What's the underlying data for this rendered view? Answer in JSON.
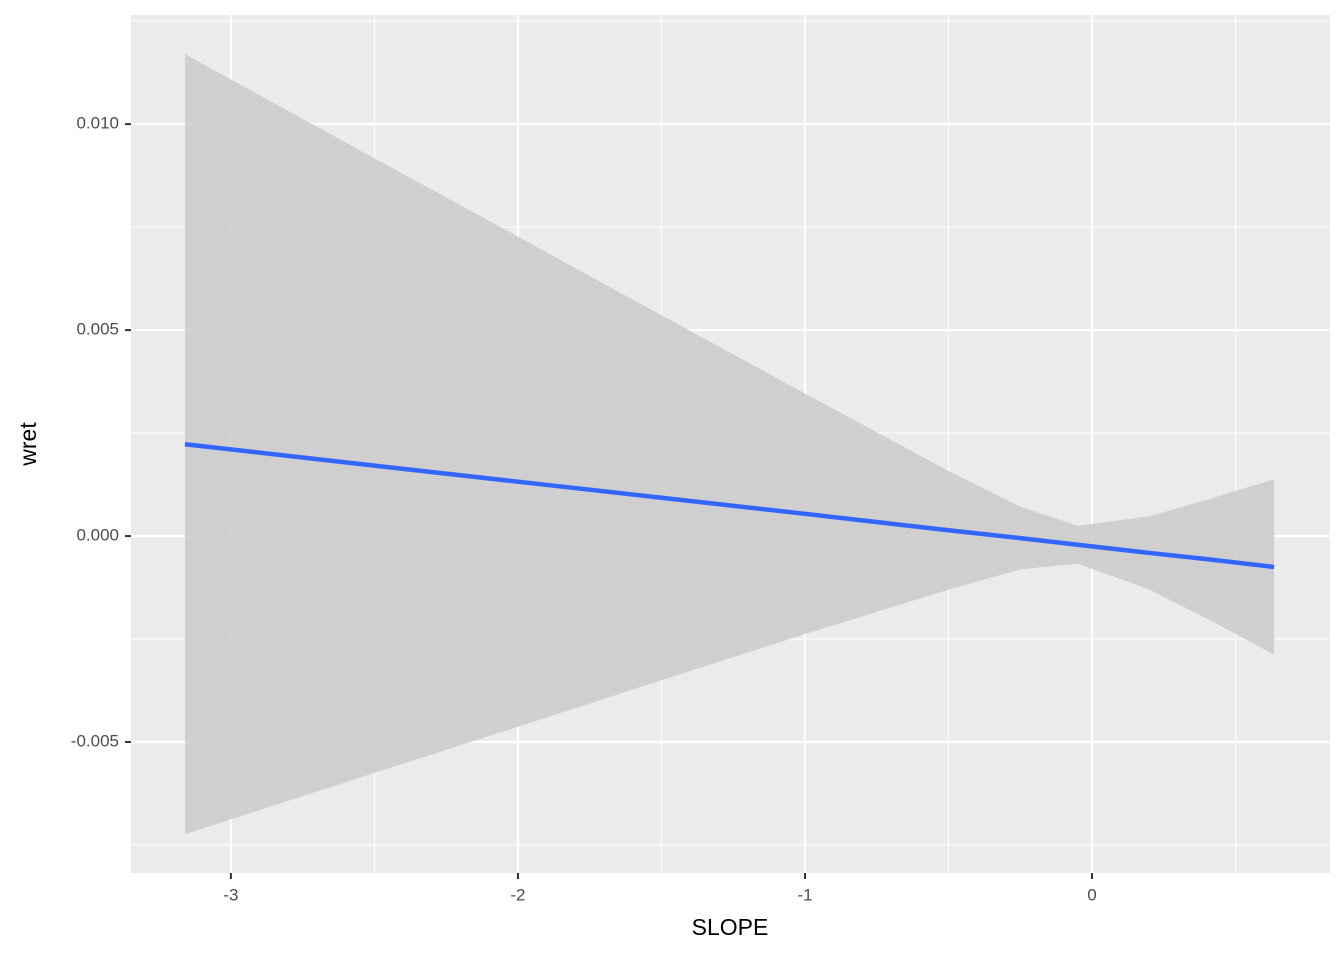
{
  "chart_data": {
    "type": "smooth",
    "x_label": "SLOPE",
    "y_label": "wret",
    "x": [
      -3.16,
      -2.5,
      -2,
      -1.5,
      -1,
      -0.5,
      -0.25,
      -0.05,
      0.2,
      0.4,
      0.634
    ],
    "values": [
      0.00223,
      0.00171,
      0.00132,
      0.00093,
      0.00054,
      0.00014,
      -5e-05,
      -0.00021,
      -0.00041,
      -0.00056,
      -0.00075
    ],
    "band": {
      "lower": [
        -0.00724,
        -0.00575,
        -0.00463,
        -0.0035,
        -0.00238,
        -0.0013,
        -0.00081,
        -0.00067,
        -0.0013,
        -0.002,
        -0.00288
      ],
      "upper": [
        0.0117,
        0.00917,
        0.00727,
        0.00536,
        0.00346,
        0.00158,
        0.00071,
        0.00025,
        0.00048,
        0.00088,
        0.00138
      ]
    },
    "color": "#3366ff",
    "band_color": "#cccccc",
    "xlim": [
      -3.348,
      0.829
    ],
    "ylim": [
      -0.00818,
      0.01265
    ],
    "xticks": [
      -3,
      -2,
      -1,
      0
    ],
    "yticks": [
      -0.005,
      {
        "value": 0,
        "label": "0.000"
      },
      0.005,
      {
        "value": 0.01,
        "label": "0.010"
      }
    ],
    "grid": true
  }
}
